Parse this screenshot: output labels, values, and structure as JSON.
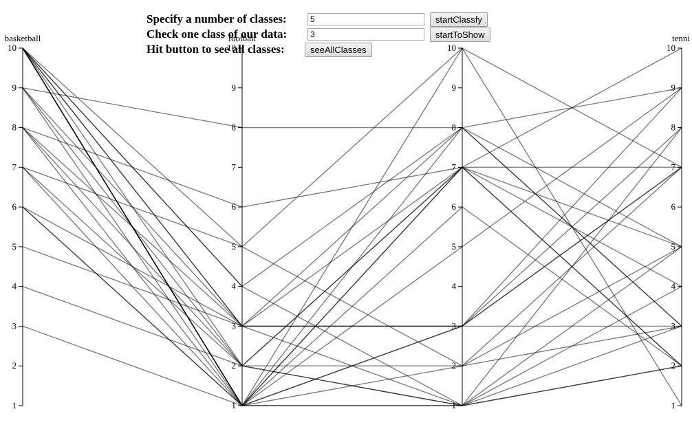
{
  "controls": {
    "classes_label": "Specify a number of classes:",
    "classes_value": "5",
    "classify_button": "startClassfy",
    "check_label": "Check one class of our data:",
    "check_value": "3",
    "show_button": "startToShow",
    "hit_label": "Hit button to see all classes:",
    "all_button": "seeAllClasses"
  },
  "chart_data": {
    "type": "parallel-coordinates",
    "axes": [
      "basketball",
      "football",
      "",
      "tennis"
    ],
    "axis_title_display": [
      "basketball",
      "football",
      "",
      "tenni"
    ],
    "range": [
      1,
      10
    ],
    "ticks": [
      1,
      2,
      3,
      4,
      5,
      6,
      7,
      8,
      9,
      10
    ],
    "records": [
      [
        10,
        1,
        1,
        2
      ],
      [
        10,
        1,
        3,
        7
      ],
      [
        10,
        1,
        7,
        5
      ],
      [
        10,
        2,
        1,
        3
      ],
      [
        10,
        3,
        3,
        8
      ],
      [
        10,
        4,
        8,
        3
      ],
      [
        10,
        5,
        10,
        1
      ],
      [
        9,
        8,
        8,
        9
      ],
      [
        9,
        2,
        7,
        7
      ],
      [
        9,
        1,
        1,
        4
      ],
      [
        8,
        3,
        3,
        7
      ],
      [
        8,
        1,
        7,
        10
      ],
      [
        8,
        6,
        7,
        2
      ],
      [
        7,
        2,
        2,
        3
      ],
      [
        7,
        1,
        5,
        9
      ],
      [
        6,
        3,
        3,
        3
      ],
      [
        6,
        1,
        6,
        2
      ],
      [
        5,
        3,
        8,
        5
      ],
      [
        4,
        2,
        1,
        2
      ],
      [
        3,
        1,
        3,
        9
      ],
      [
        10,
        1,
        8,
        3
      ],
      [
        9,
        3,
        1,
        5
      ],
      [
        8,
        2,
        7,
        2
      ],
      [
        10,
        4,
        1,
        8
      ],
      [
        7,
        5,
        2,
        5
      ],
      [
        6,
        1,
        10,
        7
      ],
      [
        10,
        3,
        7,
        4
      ],
      [
        10,
        1,
        2,
        7
      ]
    ]
  }
}
